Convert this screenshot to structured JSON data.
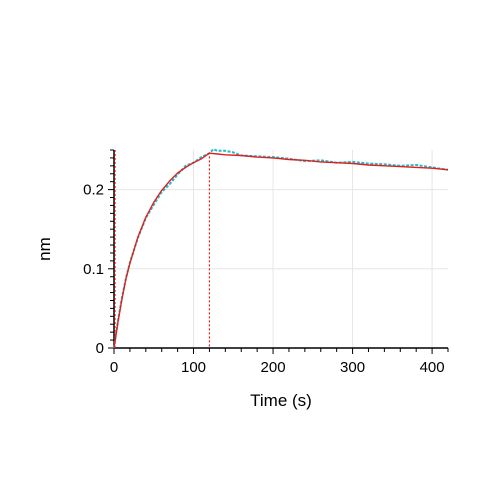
{
  "chart_data": {
    "type": "line",
    "title": "",
    "xlabel": "Time (s)",
    "ylabel": "nm",
    "xlim": [
      0,
      420
    ],
    "ylim": [
      0,
      0.25
    ],
    "x_ticks": [
      0,
      100,
      200,
      300,
      400
    ],
    "x_tick_labels": [
      "0",
      "100",
      "200",
      "300",
      "400"
    ],
    "y_ticks": [
      0,
      0.1,
      0.2
    ],
    "y_tick_labels": [
      "0",
      "0.1",
      "0.2"
    ],
    "grid": true,
    "legend": "none",
    "association_end_s": 120,
    "series": [
      {
        "kind": "measured",
        "color": "#27b9c9",
        "x": [
          0,
          5,
          10,
          15,
          20,
          30,
          40,
          50,
          60,
          70,
          80,
          90,
          100,
          110,
          120,
          125,
          130,
          140,
          150,
          160,
          180,
          200,
          220,
          240,
          260,
          280,
          300,
          320,
          340,
          360,
          380,
          400,
          420
        ],
        "y": [
          0.0,
          0.035,
          0.064,
          0.088,
          0.108,
          0.139,
          0.164,
          0.181,
          0.197,
          0.207,
          0.219,
          0.23,
          0.234,
          0.241,
          0.246,
          0.251,
          0.249,
          0.249,
          0.247,
          0.243,
          0.242,
          0.241,
          0.239,
          0.236,
          0.237,
          0.234,
          0.235,
          0.233,
          0.232,
          0.23,
          0.231,
          0.228,
          0.225
        ]
      },
      {
        "kind": "fit",
        "color": "#e0201c",
        "x": [
          0,
          5,
          10,
          15,
          20,
          30,
          40,
          50,
          60,
          70,
          80,
          90,
          100,
          110,
          120,
          130,
          140,
          160,
          180,
          200,
          220,
          240,
          260,
          280,
          300,
          320,
          340,
          360,
          380,
          400,
          420
        ],
        "y": [
          0.0,
          0.033,
          0.062,
          0.087,
          0.107,
          0.14,
          0.165,
          0.184,
          0.199,
          0.211,
          0.221,
          0.228,
          0.234,
          0.239,
          0.246,
          0.245,
          0.244,
          0.243,
          0.241,
          0.24,
          0.238,
          0.237,
          0.235,
          0.234,
          0.233,
          0.231,
          0.23,
          0.229,
          0.228,
          0.227,
          0.225
        ]
      }
    ]
  }
}
